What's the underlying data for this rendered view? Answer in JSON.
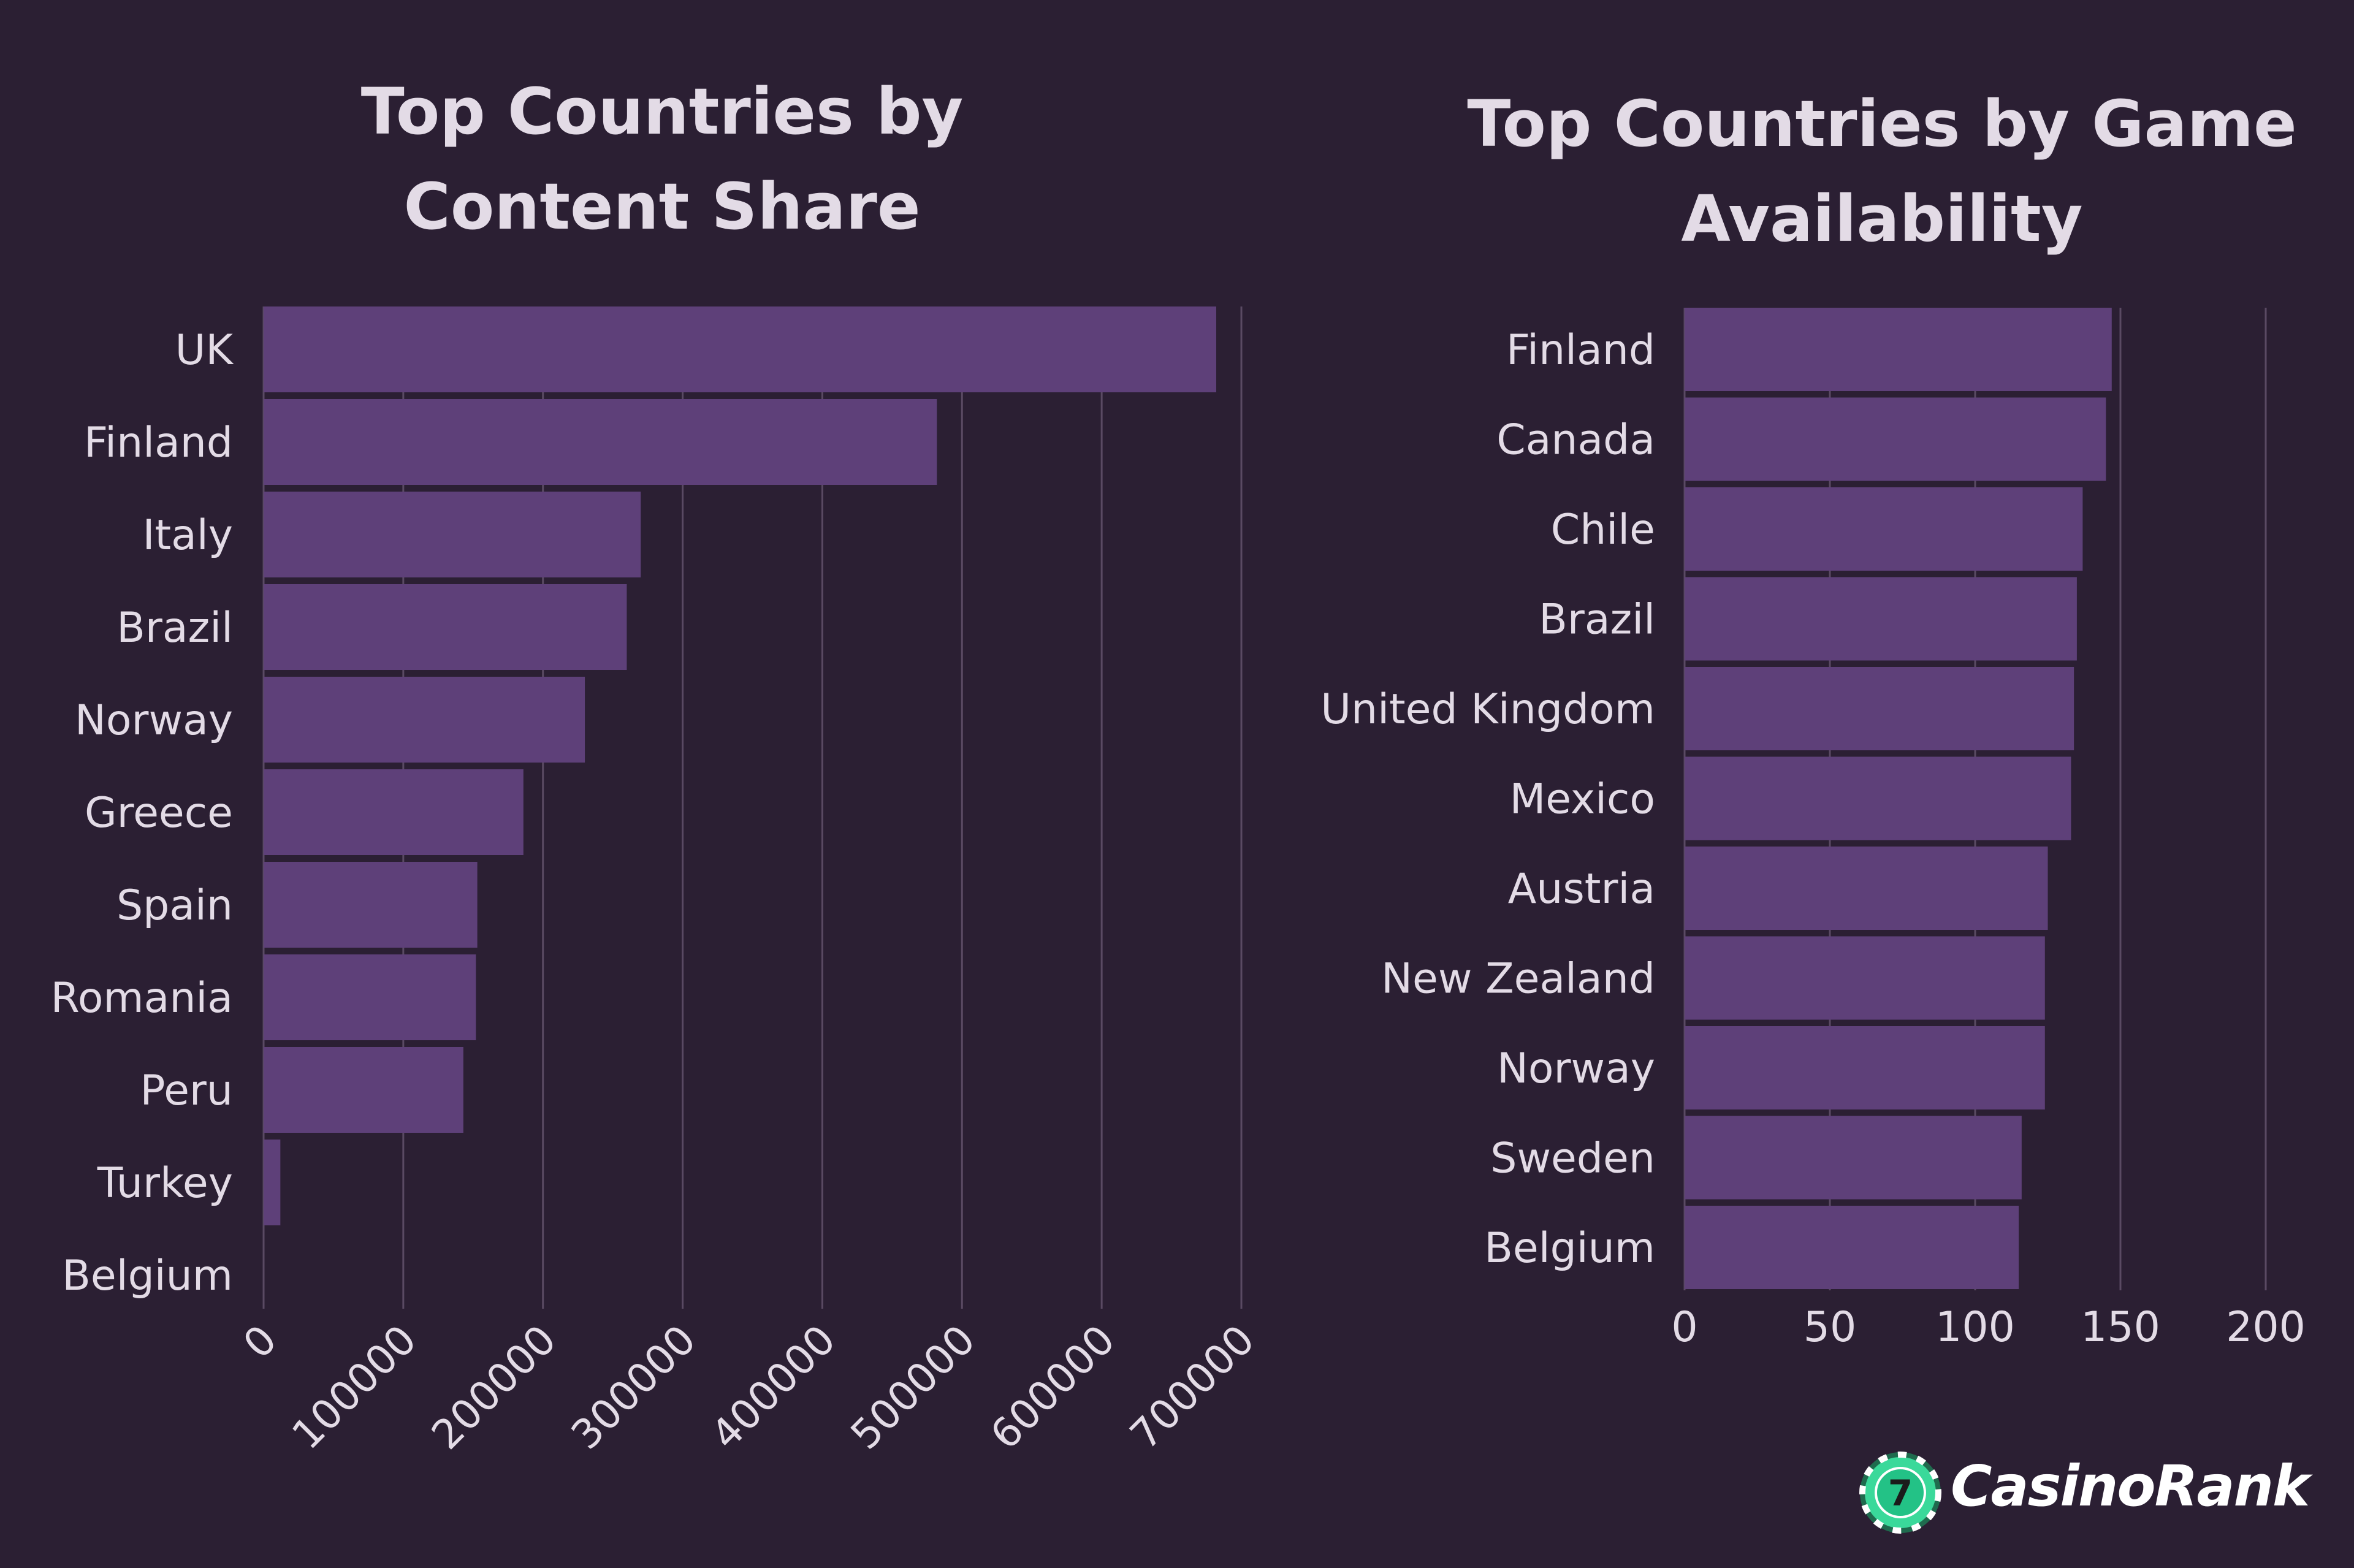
{
  "chart_data": [
    {
      "type": "bar",
      "orientation": "horizontal",
      "title": "Top Countries by Content Share",
      "categories": [
        "UK",
        "Finland",
        "Italy",
        "Brazil",
        "Norway",
        "Greece",
        "Spain",
        "Romania",
        "Peru",
        "Turkey",
        "Belgium"
      ],
      "values": [
        682000,
        482000,
        270000,
        260000,
        230000,
        186000,
        153000,
        152000,
        143000,
        12000,
        0
      ],
      "xlim": [
        0,
        700000
      ],
      "xticks": [
        "0",
        "100000",
        "200000",
        "300000",
        "400000",
        "500000",
        "600000",
        "700000"
      ],
      "xlabel": "",
      "ylabel": "",
      "grid": "vertical"
    },
    {
      "type": "bar",
      "orientation": "horizontal",
      "title": "Top Countries by Game Availability",
      "categories": [
        "Finland",
        "Canada",
        "Chile",
        "Brazil",
        "United Kingdom",
        "Mexico",
        "Austria",
        "New Zealand",
        "Norway",
        "Sweden",
        "Belgium"
      ],
      "values": [
        147,
        145,
        137,
        135,
        134,
        133,
        125,
        124,
        124,
        116,
        115
      ],
      "xlim": [
        0,
        200
      ],
      "xticks": [
        "0",
        "50",
        "100",
        "150",
        "200"
      ],
      "xlabel": "",
      "ylabel": "",
      "grid": "vertical"
    }
  ],
  "colors": {
    "background": "#2b1f33",
    "bar": "#5e4079",
    "grid": "#5a4a63",
    "text": "#e3dbe6"
  },
  "logo": {
    "chip_label": "7",
    "text": "CasinoRank"
  }
}
